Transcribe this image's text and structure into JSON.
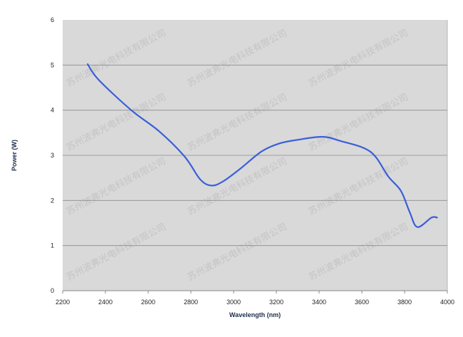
{
  "chart_data": {
    "type": "line",
    "title": "",
    "xlabel": "Wavelength (nm)",
    "ylabel": "Power (W)",
    "xlim": [
      2200,
      4000
    ],
    "ylim": [
      0,
      6
    ],
    "xticks": [
      2200,
      2400,
      2600,
      2800,
      3000,
      3200,
      3400,
      3600,
      3800,
      4000
    ],
    "yticks": [
      0,
      1,
      2,
      3,
      4,
      5,
      6
    ],
    "grid": "horizontal",
    "legend": "none",
    "colors": {
      "line": "#3a5fd9",
      "plot_bg": "#d9d9d9",
      "grid": "#8c8c8c"
    },
    "series": [
      {
        "x": [
          2317,
          2367,
          2521,
          2652,
          2771,
          2843,
          2895,
          2950,
          3033,
          3129,
          3212,
          3295,
          3414,
          3498,
          3640,
          3724,
          3783,
          3824,
          3860,
          3926,
          3952
        ],
        "y": [
          5.02,
          4.68,
          4.0,
          3.53,
          2.97,
          2.47,
          2.33,
          2.42,
          2.71,
          3.08,
          3.26,
          3.34,
          3.41,
          3.32,
          3.08,
          2.53,
          2.21,
          1.74,
          1.41,
          1.62,
          1.62
        ]
      }
    ]
  },
  "watermark": "苏州波弗光电科技有限公司"
}
